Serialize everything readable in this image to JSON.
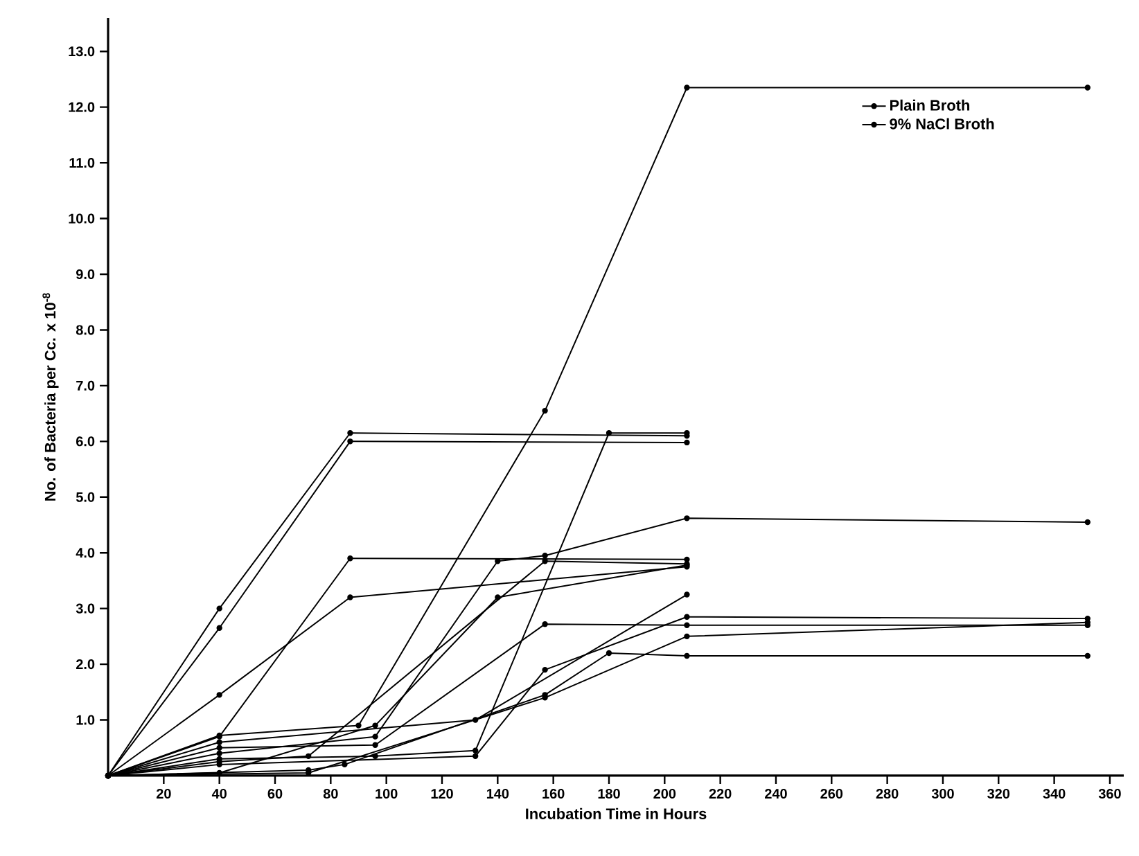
{
  "chart_data": {
    "type": "line",
    "xlabel": "Incubation Time in Hours",
    "ylabel": "No. of Bacteria per Cc. x 10$^{-8}$",
    "xlim": [
      0,
      365
    ],
    "ylim": [
      0,
      13.6
    ],
    "xticks": [
      20,
      40,
      60,
      80,
      100,
      120,
      140,
      160,
      180,
      200,
      220,
      240,
      260,
      280,
      300,
      320,
      340,
      360
    ],
    "yticks": [
      {
        "value": 1,
        "label": "1.0"
      },
      {
        "value": 2,
        "label": "2.0"
      },
      {
        "value": 3,
        "label": "3.0"
      },
      {
        "value": 4,
        "label": "4.0"
      },
      {
        "value": 5,
        "label": "5.0"
      },
      {
        "value": 6,
        "label": "6.0"
      },
      {
        "value": 7,
        "label": "7.0"
      },
      {
        "value": 8,
        "label": "8.0"
      },
      {
        "value": 9,
        "label": "9.0"
      },
      {
        "value": 10,
        "label": "10.0"
      },
      {
        "value": 11,
        "label": "11.0"
      },
      {
        "value": 12,
        "label": "12.0"
      },
      {
        "value": 13,
        "label": "13.0"
      }
    ],
    "marker": "circle",
    "line_style": "solid",
    "grid": false,
    "legend": "top right",
    "series": [
      {
        "name": "Plain Broth",
        "color": "#000000",
        "x": [
          0,
          40,
          87,
          208
        ],
        "values": [
          0,
          3.0,
          6.15,
          6.1
        ]
      },
      {
        "color": "#000000",
        "x": [
          0,
          40,
          87,
          208
        ],
        "values": [
          0,
          2.65,
          6.0,
          5.98
        ]
      },
      {
        "color": "#000000",
        "x": [
          0,
          40,
          87,
          208
        ],
        "values": [
          0,
          0.7,
          3.9,
          3.88
        ]
      },
      {
        "color": "#000000",
        "x": [
          0,
          40,
          87,
          208
        ],
        "values": [
          0,
          1.45,
          3.2,
          3.75
        ]
      },
      {
        "name": "9% NaCl Broth",
        "color": "#000000",
        "x": [
          0,
          40,
          90,
          157,
          208,
          352
        ],
        "values": [
          0,
          0.72,
          0.9,
          6.55,
          12.35,
          12.35
        ]
      },
      {
        "color": "#000000",
        "x": [
          0,
          40,
          96,
          132,
          180,
          208
        ],
        "values": [
          0,
          0.3,
          0.35,
          0.45,
          6.15,
          6.15
        ]
      },
      {
        "color": "#000000",
        "x": [
          0,
          40,
          96,
          140,
          157,
          208,
          352
        ],
        "values": [
          0,
          0.4,
          0.7,
          3.85,
          3.95,
          4.62,
          4.55
        ]
      },
      {
        "color": "#000000",
        "x": [
          0,
          40,
          72,
          157,
          208
        ],
        "values": [
          0,
          0.25,
          0.35,
          3.85,
          3.8
        ]
      },
      {
        "color": "#000000",
        "x": [
          0,
          40,
          96,
          157,
          208,
          352
        ],
        "values": [
          0,
          0.5,
          0.55,
          2.72,
          2.7,
          2.7
        ]
      },
      {
        "color": "#000000",
        "x": [
          0,
          40,
          132,
          157,
          208,
          352
        ],
        "values": [
          0,
          0.2,
          0.35,
          1.9,
          2.85,
          2.82
        ]
      },
      {
        "color": "#000000",
        "x": [
          0,
          40,
          132,
          208
        ],
        "values": [
          0,
          0.6,
          1.0,
          3.25
        ]
      },
      {
        "color": "#000000",
        "x": [
          0,
          72,
          85,
          157,
          180,
          208,
          352
        ],
        "values": [
          0,
          0.1,
          0.2,
          1.45,
          2.2,
          2.15,
          2.15
        ]
      },
      {
        "color": "#000000",
        "x": [
          0,
          72,
          157,
          208,
          352
        ],
        "values": [
          0,
          0.05,
          1.4,
          2.5,
          2.75
        ]
      },
      {
        "color": "#000000",
        "x": [
          0,
          40,
          96,
          140,
          208
        ],
        "values": [
          0,
          0.05,
          0.9,
          3.2,
          3.78
        ]
      }
    ]
  }
}
